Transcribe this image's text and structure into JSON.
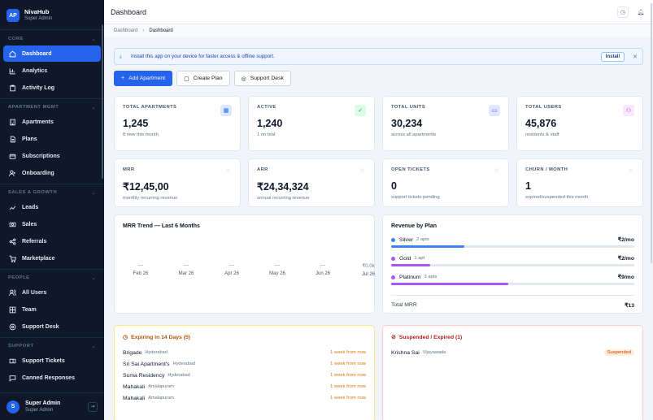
{
  "brand": {
    "logo": "AP",
    "name": "NivaHub",
    "role": "Super Admin"
  },
  "sidebar": {
    "sections": [
      {
        "label": "CORE",
        "items": [
          {
            "label": "Dashboard",
            "icon": "home-icon",
            "active": true
          },
          {
            "label": "Analytics",
            "icon": "chart-icon"
          },
          {
            "label": "Activity Log",
            "icon": "clipboard-icon"
          }
        ]
      },
      {
        "label": "APARTMENT MGMT",
        "items": [
          {
            "label": "Apartments",
            "icon": "building-icon"
          },
          {
            "label": "Plans",
            "icon": "document-icon"
          },
          {
            "label": "Subscriptions",
            "icon": "card-icon"
          },
          {
            "label": "Onboarding",
            "icon": "user-plus-icon"
          }
        ]
      },
      {
        "label": "SALES & GROWTH",
        "items": [
          {
            "label": "Leads",
            "icon": "trend-icon"
          },
          {
            "label": "Sales",
            "icon": "cash-icon"
          },
          {
            "label": "Referrals",
            "icon": "share-icon"
          },
          {
            "label": "Marketplace",
            "icon": "cart-icon"
          }
        ]
      },
      {
        "label": "PEOPLE",
        "items": [
          {
            "label": "All Users",
            "icon": "users-icon"
          },
          {
            "label": "Team",
            "icon": "team-icon"
          },
          {
            "label": "Support Desk",
            "icon": "headset-icon"
          }
        ]
      },
      {
        "label": "SUPPORT",
        "items": [
          {
            "label": "Support Tickets",
            "icon": "ticket-icon"
          },
          {
            "label": "Canned Responses",
            "icon": "message-icon"
          }
        ]
      }
    ],
    "user": {
      "avatar": "S",
      "name": "Super Admin",
      "role": "Super Admin"
    }
  },
  "header": {
    "title": "Dashboard"
  },
  "breadcrumb": {
    "parent": "Dashboard",
    "current": "Dashboard",
    "sep": "›"
  },
  "install": {
    "text": "Install this app on your device for faster access & offline support.",
    "button": "Install",
    "close": "✕"
  },
  "actions": {
    "add": "Add Apartment",
    "plan": "Create Plan",
    "support": "Support Desk"
  },
  "stats": [
    {
      "label": "TOTAL APARTMENTS",
      "value": "1,245",
      "sub": "8 new this month",
      "icon": "building-icon",
      "color": "#2563eb",
      "bg": "#dbeafe"
    },
    {
      "label": "ACTIVE",
      "value": "1,240",
      "sub": "1 on trial",
      "icon": "check-circle-icon",
      "color": "#16a34a",
      "bg": "#dcfce7"
    },
    {
      "label": "TOTAL UNITS",
      "value": "30,234",
      "sub": "across all apartments",
      "icon": "folder-icon",
      "color": "#4f46e5",
      "bg": "#e0e7ff"
    },
    {
      "label": "TOTAL USERS",
      "value": "45,876",
      "sub": "residents & staff",
      "icon": "users-icon",
      "color": "#c026d3",
      "bg": "#fae8ff"
    },
    {
      "label": "MRR",
      "value": "₹12,45,00",
      "sub": "monthly recurring revenue"
    },
    {
      "label": "ARR",
      "value": "₹24,34,324",
      "sub": "annual recurring revenue"
    },
    {
      "label": "OPEN TICKETS",
      "value": "0",
      "sub": "support tickets pending"
    },
    {
      "label": "CHURN / MONTH",
      "value": "1",
      "sub": "expired/suspended this month"
    }
  ],
  "mrr": {
    "title": "MRR Trend — Last 6 Months",
    "months": [
      {
        "label": "Feb 26",
        "value": "—"
      },
      {
        "label": "Mar 26",
        "value": "—"
      },
      {
        "label": "Apr 26",
        "value": "—"
      },
      {
        "label": "May 26",
        "value": "—"
      },
      {
        "label": "Jun 26",
        "value": "—"
      },
      {
        "label": "Jul 26",
        "value": "₹0.0k"
      }
    ]
  },
  "revenue": {
    "title": "Revenue by Plan",
    "plans": [
      {
        "name": "Silver",
        "apts": "2 apts",
        "value": "₹2/mo",
        "color": "#3b82f6",
        "share": 0.3
      },
      {
        "name": "Gold",
        "apts": "1 apt",
        "value": "₹2/mo",
        "color": "#a855f7",
        "share": 0.16
      },
      {
        "name": "Platinum",
        "apts": "3 apts",
        "value": "₹9/mo",
        "color": "#a855f7",
        "share": 0.48
      }
    ],
    "total_label": "Total MRR",
    "total_value": "₹13"
  },
  "expiring": {
    "title": "Expiring in 14 Days (5)",
    "rows": [
      {
        "name": "Brigade",
        "city": "Hyderabad",
        "when": "1 week from now"
      },
      {
        "name": "Sri Sai Apartment's",
        "city": "Hyderabad",
        "when": "1 week from now"
      },
      {
        "name": "Suma Residency",
        "city": "Hyderabad",
        "when": "1 week from now"
      },
      {
        "name": "Mahakali",
        "city": "Amalapuram",
        "when": "1 week from now"
      },
      {
        "name": "Mahakali",
        "city": "Amalapuram",
        "when": "1 week from now"
      }
    ]
  },
  "suspended": {
    "title": "Suspended / Expired (1)",
    "rows": [
      {
        "name": "Krishna Sai",
        "city": "Vijayawada",
        "status": "Suspended"
      }
    ]
  }
}
